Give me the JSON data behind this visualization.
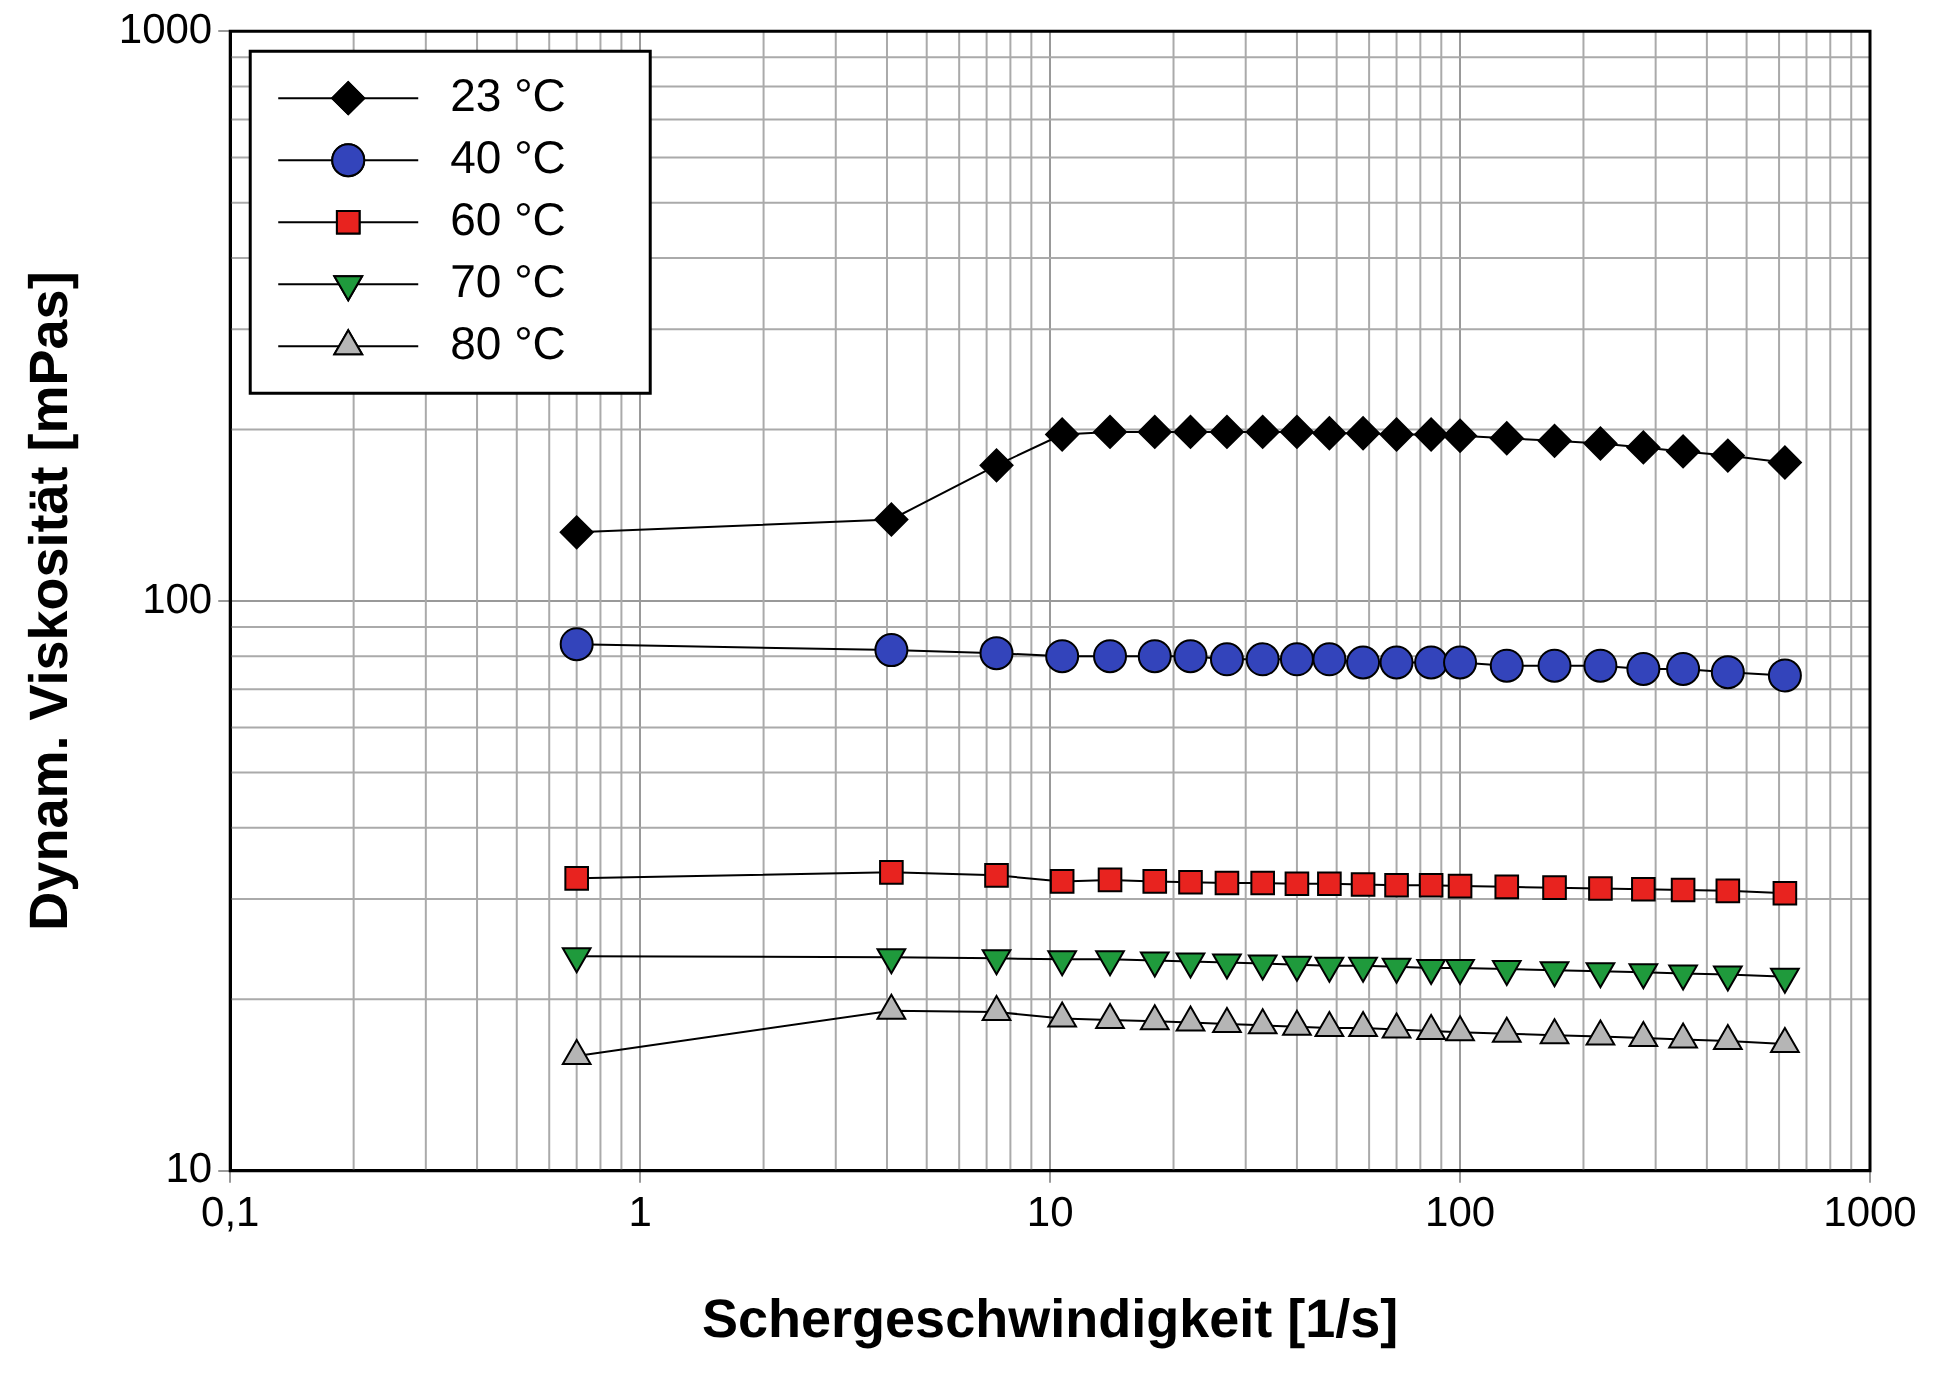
{
  "chart_data": {
    "type": "line",
    "xlabel": "Schergeschwindigkeit [1/s]",
    "ylabel": "Dynam. Viskosität [mPas]",
    "log": "xy",
    "xlim": [
      0.1,
      1000
    ],
    "xticks": [
      {
        "value": 0.1,
        "label": "0,1"
      },
      1,
      10,
      100,
      1000
    ],
    "ylim": [
      10,
      1000
    ],
    "yticks": [
      10,
      100,
      1000
    ],
    "grid": true,
    "legend": "top left",
    "line_style": "solid",
    "x": [
      0.7,
      4.1,
      7.4,
      10.7,
      14,
      18,
      22,
      27,
      33,
      40,
      48,
      58,
      70,
      85,
      100,
      130,
      170,
      220,
      280,
      350,
      450,
      620
    ],
    "series": [
      {
        "name": "23 °C",
        "color": "#000000",
        "marker": "diamond",
        "values": [
          132,
          139,
          173,
          196,
          198,
          198,
          198,
          198,
          198,
          198,
          197,
          197,
          196,
          196,
          195,
          193,
          191,
          189,
          186,
          183,
          180,
          175
        ]
      },
      {
        "name": "40 °C",
        "color": "#3344bb",
        "marker": "circle",
        "values": [
          84,
          82,
          81,
          80,
          80,
          80,
          80,
          79,
          79,
          79,
          79,
          78,
          78,
          78,
          78,
          77,
          77,
          77,
          76,
          76,
          75,
          74
        ]
      },
      {
        "name": "60 °C",
        "color": "#e8231f",
        "marker": "square",
        "values": [
          32.6,
          33.4,
          33,
          32.2,
          32.4,
          32.2,
          32.1,
          32,
          32,
          31.9,
          31.9,
          31.8,
          31.7,
          31.7,
          31.6,
          31.5,
          31.4,
          31.3,
          31.2,
          31.1,
          31,
          30.7
        ]
      },
      {
        "name": "70 °C",
        "color": "#1f9a3c",
        "marker": "triangle_down",
        "values": [
          23.8,
          23.7,
          23.6,
          23.5,
          23.5,
          23.4,
          23.3,
          23.2,
          23.1,
          23,
          22.9,
          22.9,
          22.8,
          22.7,
          22.7,
          22.6,
          22.5,
          22.4,
          22.3,
          22.2,
          22.1,
          21.9
        ]
      },
      {
        "name": "80 °C",
        "color": "#b5b5b5",
        "marker": "triangle",
        "values": [
          15.9,
          19.1,
          19,
          18.5,
          18.4,
          18.3,
          18.2,
          18.1,
          18,
          17.9,
          17.8,
          17.8,
          17.7,
          17.6,
          17.5,
          17.4,
          17.3,
          17.2,
          17.1,
          17,
          16.9,
          16.7
        ]
      }
    ]
  }
}
